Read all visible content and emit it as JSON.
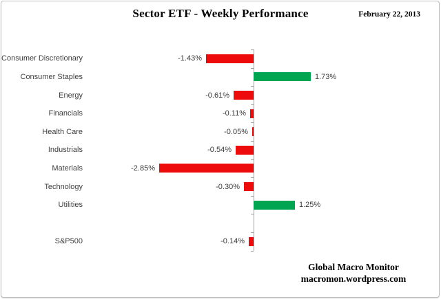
{
  "header": {
    "title": "Sector ETF - Weekly Performance",
    "date": "February 22, 2013"
  },
  "chart_data": {
    "type": "bar",
    "orientation": "horizontal",
    "title": "Sector ETF - Weekly Performance",
    "subtitle_date": "February 22, 2013",
    "xlabel": "",
    "ylabel": "",
    "grid": false,
    "legend": "none",
    "value_unit": "percent",
    "categories": [
      "Consumer Discretionary",
      "Consumer Staples",
      "Energy",
      "Financials",
      "Health Care",
      "Industrials",
      "Materials",
      "Technology",
      "Utilities",
      "",
      "S&P500"
    ],
    "values": [
      -1.43,
      1.73,
      -0.61,
      -0.11,
      -0.05,
      -0.54,
      -2.85,
      -0.3,
      1.25,
      null,
      -0.14
    ],
    "labels": [
      "-1.43%",
      "1.73%",
      "-0.61%",
      "-0.11%",
      "-0.05%",
      "-0.54%",
      "-2.85%",
      "-0.30%",
      "1.25%",
      "",
      "-0.14%"
    ],
    "colors": {
      "negative": "#ee0b0b",
      "positive": "#00a551",
      "axis": "#9e9e9e",
      "label_text": "#3f3f3f"
    }
  },
  "footer": {
    "brand": "Global Macro Monitor",
    "url": "macromon.wordpress.com"
  }
}
